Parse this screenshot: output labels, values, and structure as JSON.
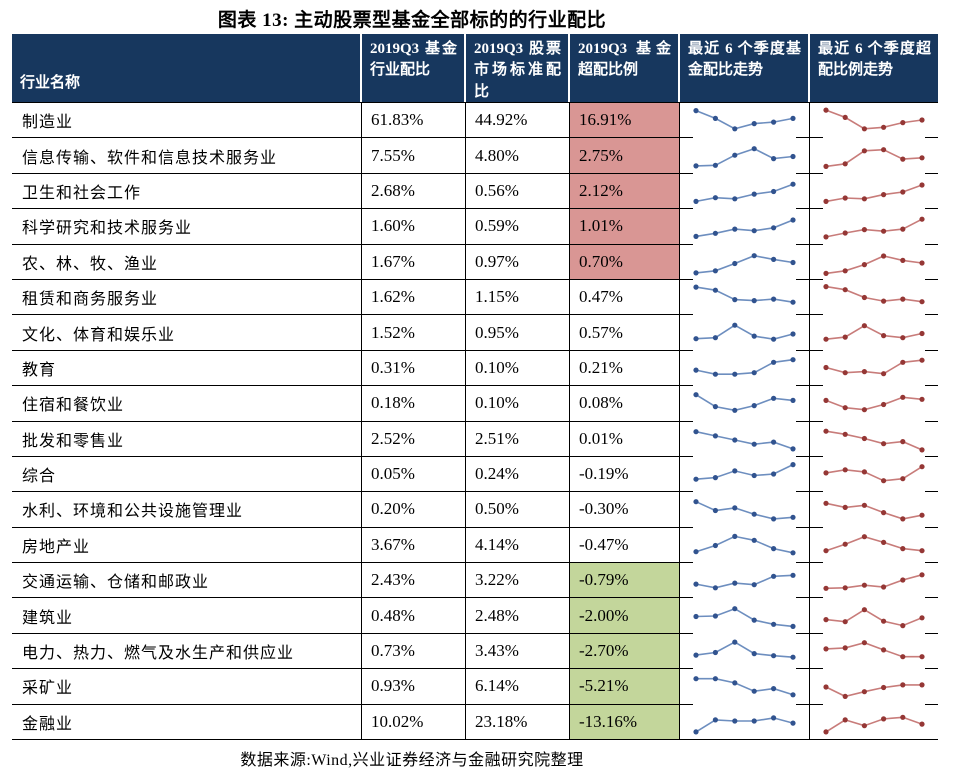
{
  "title": "图表 13: 主动股票型基金全部标的的行业配比",
  "footer": "数据来源:Wind,兴业证券经济与金融研究院整理",
  "colors": {
    "header_bg": "#17375E",
    "header_text": "#FFFFFF",
    "overweight_positive_bg": "#D99694",
    "overweight_negative_bg": "#C3D69B",
    "fund_trend_line": "#6D8EBF",
    "fund_trend_dot": "#31538F",
    "overweight_trend_line": "#C87C7A",
    "overweight_trend_dot": "#953735",
    "border": "#000000"
  },
  "table": {
    "columns": [
      {
        "label": "行业名称"
      },
      {
        "label": "2019Q3 基金行业配比"
      },
      {
        "label": "2019Q3 股票市场标准配比"
      },
      {
        "label": "2019Q3 基金超配比例"
      },
      {
        "label": "最近 6 个季度基金配比走势"
      },
      {
        "label": "最近 6 个季度超配比例走势"
      }
    ],
    "rows": [
      {
        "industry": "制造业",
        "fund_ratio": "61.83%",
        "market_ratio": "44.92%",
        "overweight": "16.91%",
        "highlight": "red",
        "fund_trend": [
          0.88,
          0.58,
          0.18,
          0.38,
          0.44,
          0.58
        ],
        "overweight_trend": [
          0.9,
          0.62,
          0.18,
          0.24,
          0.42,
          0.52
        ]
      },
      {
        "industry": "信息传输、软件和信息技术服务业",
        "fund_ratio": "7.55%",
        "market_ratio": "4.80%",
        "overweight": "2.75%",
        "highlight": "red",
        "fund_trend": [
          0.14,
          0.16,
          0.55,
          0.8,
          0.42,
          0.5
        ],
        "overweight_trend": [
          0.12,
          0.22,
          0.72,
          0.76,
          0.4,
          0.45
        ]
      },
      {
        "industry": "卫生和社会工作",
        "fund_ratio": "2.68%",
        "market_ratio": "0.56%",
        "overweight": "2.12%",
        "highlight": "red",
        "fund_trend": [
          0.12,
          0.26,
          0.22,
          0.4,
          0.5,
          0.78
        ],
        "overweight_trend": [
          0.12,
          0.25,
          0.22,
          0.38,
          0.48,
          0.75
        ]
      },
      {
        "industry": "科学研究和技术服务业",
        "fund_ratio": "1.60%",
        "market_ratio": "0.59%",
        "overweight": "1.01%",
        "highlight": "red",
        "fund_trend": [
          0.12,
          0.24,
          0.4,
          0.34,
          0.45,
          0.75
        ],
        "overweight_trend": [
          0.1,
          0.25,
          0.38,
          0.32,
          0.4,
          0.78
        ]
      },
      {
        "industry": "农、林、牧、渔业",
        "fund_ratio": "1.67%",
        "market_ratio": "0.97%",
        "overweight": "0.70%",
        "highlight": "red",
        "fund_trend": [
          0.1,
          0.18,
          0.46,
          0.76,
          0.62,
          0.5
        ],
        "overweight_trend": [
          0.08,
          0.18,
          0.42,
          0.75,
          0.58,
          0.48
        ]
      },
      {
        "industry": "租赁和商务服务业",
        "fund_ratio": "1.62%",
        "market_ratio": "1.15%",
        "overweight": "0.47%",
        "highlight": "none",
        "fund_trend": [
          0.9,
          0.78,
          0.42,
          0.38,
          0.44,
          0.32
        ],
        "overweight_trend": [
          0.92,
          0.8,
          0.5,
          0.36,
          0.44,
          0.34
        ]
      },
      {
        "industry": "文化、体育和娱乐业",
        "fund_ratio": "1.52%",
        "market_ratio": "0.95%",
        "overweight": "0.57%",
        "highlight": "none",
        "fund_trend": [
          0.3,
          0.34,
          0.82,
          0.4,
          0.28,
          0.48
        ],
        "overweight_trend": [
          0.28,
          0.36,
          0.8,
          0.42,
          0.34,
          0.5
        ]
      },
      {
        "industry": "教育",
        "fund_ratio": "0.31%",
        "market_ratio": "0.10%",
        "overweight": "0.21%",
        "highlight": "none",
        "fund_trend": [
          0.44,
          0.28,
          0.28,
          0.34,
          0.74,
          0.84
        ],
        "overweight_trend": [
          0.54,
          0.34,
          0.38,
          0.3,
          0.74,
          0.82
        ]
      },
      {
        "industry": "住宿和餐饮业",
        "fund_ratio": "0.18%",
        "market_ratio": "0.10%",
        "overweight": "0.08%",
        "highlight": "none",
        "fund_trend": [
          0.84,
          0.38,
          0.24,
          0.42,
          0.7,
          0.62
        ],
        "overweight_trend": [
          0.62,
          0.34,
          0.26,
          0.46,
          0.74,
          0.66
        ]
      },
      {
        "industry": "批发和零售业",
        "fund_ratio": "2.52%",
        "market_ratio": "2.51%",
        "overweight": "0.01%",
        "highlight": "none",
        "fund_trend": [
          0.8,
          0.64,
          0.48,
          0.32,
          0.4,
          0.14
        ],
        "overweight_trend": [
          0.82,
          0.7,
          0.54,
          0.34,
          0.42,
          0.1
        ]
      },
      {
        "industry": "综合",
        "fund_ratio": "0.05%",
        "market_ratio": "0.24%",
        "overweight": "-0.19%",
        "highlight": "none",
        "fund_trend": [
          0.32,
          0.38,
          0.64,
          0.46,
          0.52,
          0.88
        ],
        "overweight_trend": [
          0.56,
          0.68,
          0.6,
          0.26,
          0.34,
          0.8
        ]
      },
      {
        "industry": "水利、环境和公共设施管理业",
        "fund_ratio": "0.20%",
        "market_ratio": "0.50%",
        "overweight": "-0.30%",
        "highlight": "none",
        "fund_trend": [
          0.8,
          0.46,
          0.56,
          0.32,
          0.14,
          0.2
        ],
        "overweight_trend": [
          0.74,
          0.58,
          0.66,
          0.38,
          0.14,
          0.28
        ]
      },
      {
        "industry": "房地产业",
        "fund_ratio": "3.67%",
        "market_ratio": "4.14%",
        "overweight": "-0.47%",
        "highlight": "none",
        "fund_trend": [
          0.26,
          0.5,
          0.85,
          0.7,
          0.38,
          0.22
        ],
        "overweight_trend": [
          0.3,
          0.55,
          0.84,
          0.62,
          0.38,
          0.3
        ]
      },
      {
        "industry": "交通运输、仓储和邮政业",
        "fund_ratio": "2.43%",
        "market_ratio": "3.22%",
        "overweight": "-0.79%",
        "highlight": "green",
        "fund_trend": [
          0.36,
          0.22,
          0.4,
          0.34,
          0.66,
          0.7
        ],
        "overweight_trend": [
          0.2,
          0.22,
          0.32,
          0.25,
          0.52,
          0.72
        ]
      },
      {
        "industry": "建筑业",
        "fund_ratio": "0.48%",
        "market_ratio": "2.48%",
        "overweight": "-2.00%",
        "highlight": "green",
        "fund_trend": [
          0.5,
          0.52,
          0.8,
          0.36,
          0.2,
          0.12
        ],
        "overweight_trend": [
          0.38,
          0.3,
          0.76,
          0.32,
          0.15,
          0.45
        ]
      },
      {
        "industry": "电力、热力、燃气及水生产和供应业",
        "fund_ratio": "0.73%",
        "market_ratio": "3.43%",
        "overweight": "-2.70%",
        "highlight": "green",
        "fund_trend": [
          0.36,
          0.46,
          0.86,
          0.42,
          0.34,
          0.28
        ],
        "overweight_trend": [
          0.6,
          0.64,
          0.84,
          0.56,
          0.3,
          0.3
        ]
      },
      {
        "industry": "采矿业",
        "fund_ratio": "0.93%",
        "market_ratio": "6.14%",
        "overweight": "-5.21%",
        "highlight": "green",
        "fund_trend": [
          0.8,
          0.8,
          0.64,
          0.32,
          0.42,
          0.18
        ],
        "overweight_trend": [
          0.48,
          0.12,
          0.3,
          0.46,
          0.56,
          0.56
        ]
      },
      {
        "industry": "金融业",
        "fund_ratio": "10.02%",
        "market_ratio": "23.18%",
        "overweight": "-13.16%",
        "highlight": "green",
        "fund_trend": [
          0.1,
          0.56,
          0.52,
          0.52,
          0.64,
          0.44
        ],
        "overweight_trend": [
          0.1,
          0.56,
          0.34,
          0.6,
          0.66,
          0.4
        ]
      }
    ]
  }
}
